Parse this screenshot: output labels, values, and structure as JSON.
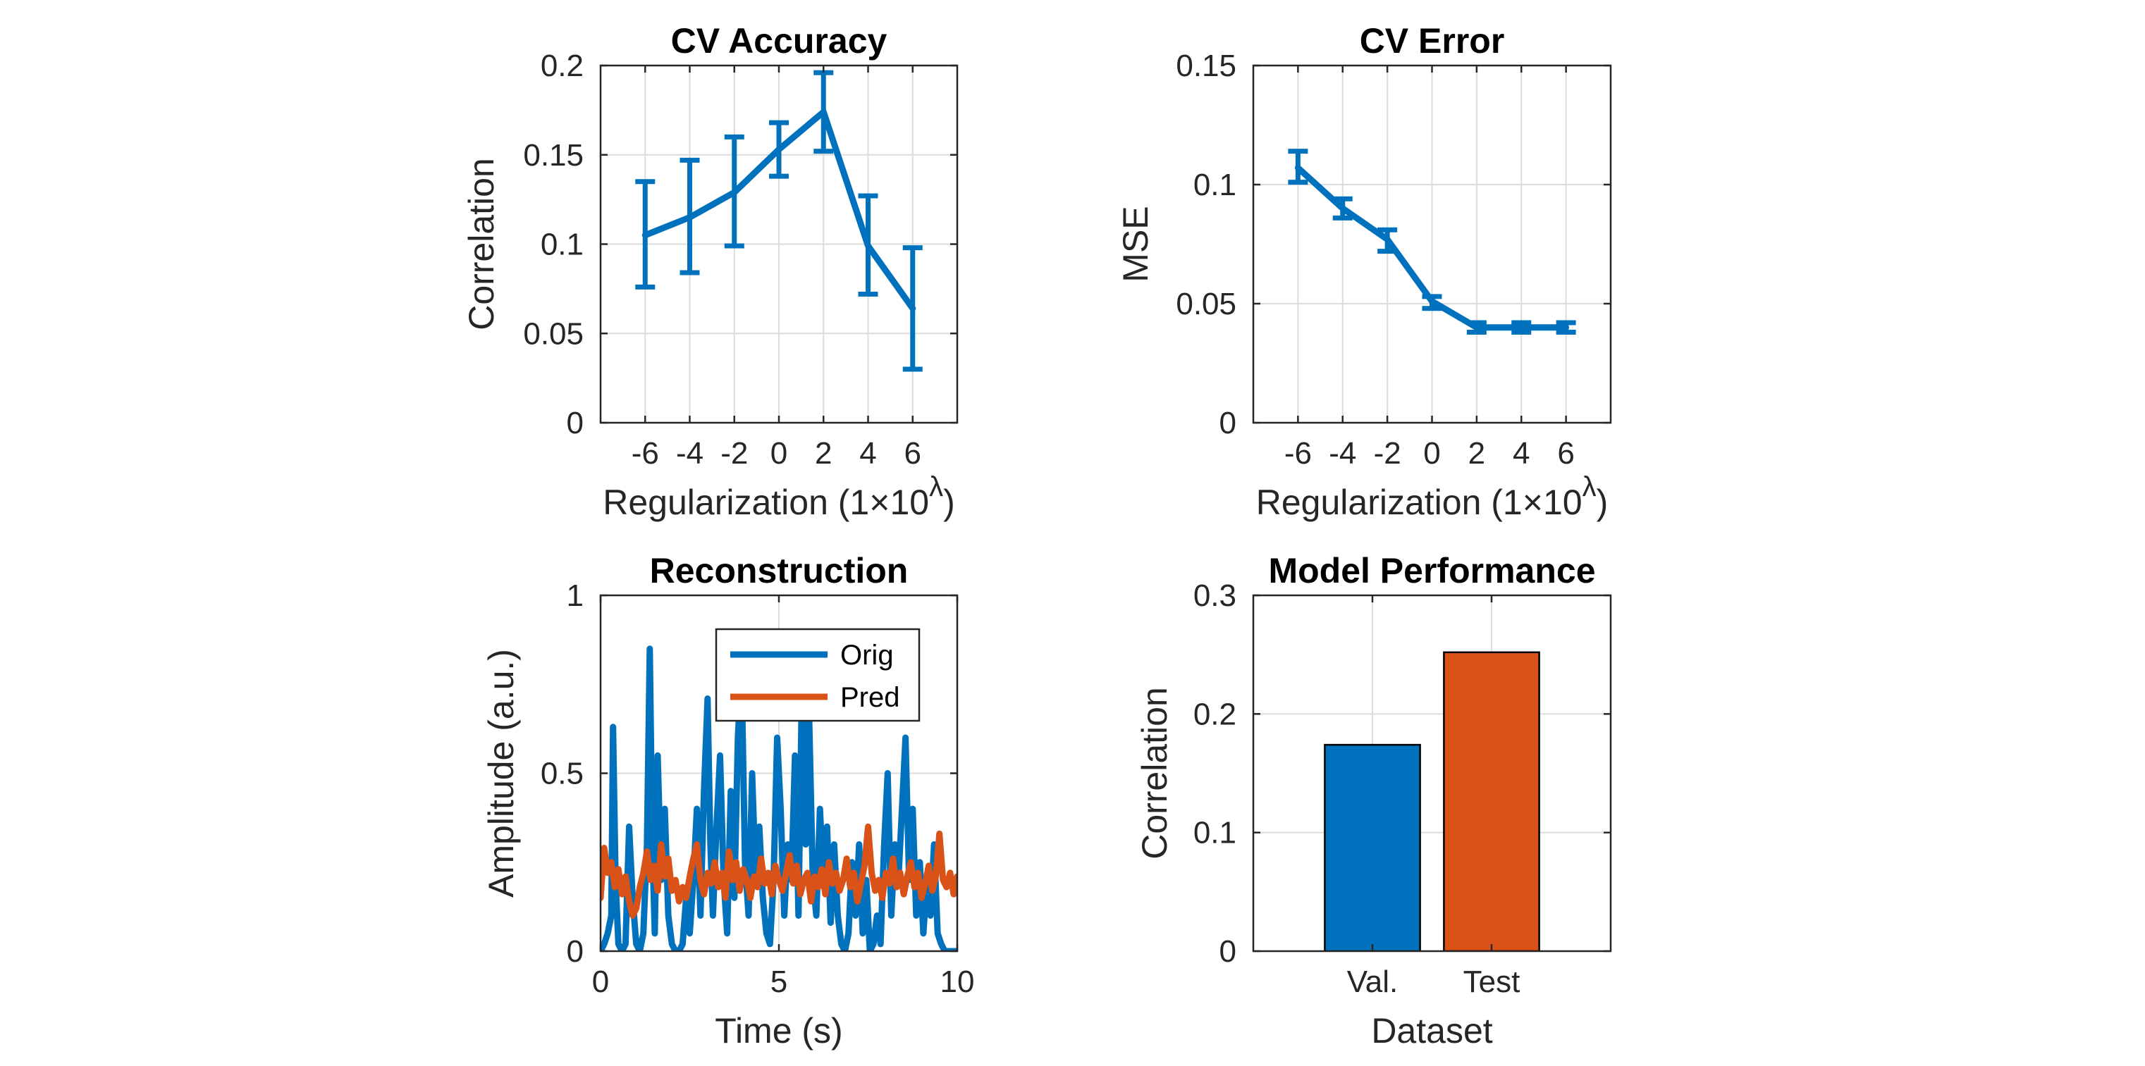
{
  "chart_data": [
    {
      "id": "cv-accuracy",
      "type": "line",
      "title": "CV Accuracy",
      "xlabel": "Regularization (1×10^λ)",
      "xlabel_main": "Regularization (1×10",
      "xlabel_sup": "λ",
      "xlabel_close": ")",
      "ylabel": "Correlation",
      "x": [
        -6,
        -4,
        -2,
        0,
        2,
        4,
        6
      ],
      "xlim": [
        -8,
        8
      ],
      "xticks": [
        -6,
        -4,
        -2,
        0,
        2,
        4,
        6
      ],
      "ylim": [
        0,
        0.2
      ],
      "yticks": [
        0,
        0.05,
        0.1,
        0.15,
        0.2
      ],
      "ytick_labels": [
        "0",
        "0.05",
        "0.1",
        "0.15",
        "0.2"
      ],
      "grid": true,
      "series": [
        {
          "name": "CV Accuracy",
          "color": "#0072BD",
          "values": [
            0.105,
            0.115,
            0.129,
            0.153,
            0.174,
            0.099,
            0.064
          ],
          "error_low": [
            0.076,
            0.084,
            0.099,
            0.138,
            0.152,
            0.072,
            0.03
          ],
          "error_high": [
            0.135,
            0.147,
            0.16,
            0.168,
            0.196,
            0.127,
            0.098
          ]
        }
      ]
    },
    {
      "id": "cv-error",
      "type": "line",
      "title": "CV Error",
      "xlabel": "Regularization (1×10^λ)",
      "xlabel_main": "Regularization (1×10",
      "xlabel_sup": "λ",
      "xlabel_close": ")",
      "ylabel": "MSE",
      "x": [
        -6,
        -4,
        -2,
        0,
        2,
        4,
        6
      ],
      "xlim": [
        -8,
        8
      ],
      "xticks": [
        -6,
        -4,
        -2,
        0,
        2,
        4,
        6
      ],
      "ylim": [
        0,
        0.15
      ],
      "yticks": [
        0,
        0.05,
        0.1,
        0.15
      ],
      "ytick_labels": [
        "0",
        "0.05",
        "0.1",
        "0.15"
      ],
      "grid": true,
      "series": [
        {
          "name": "CV Error",
          "color": "#0072BD",
          "values": [
            0.107,
            0.09,
            0.077,
            0.051,
            0.04,
            0.04,
            0.04
          ],
          "error_low": [
            0.101,
            0.086,
            0.072,
            0.048,
            0.038,
            0.038,
            0.038
          ],
          "error_high": [
            0.114,
            0.094,
            0.081,
            0.053,
            0.042,
            0.042,
            0.042
          ]
        }
      ]
    },
    {
      "id": "reconstruction",
      "type": "line",
      "title": "Reconstruction",
      "xlabel": "Time (s)",
      "ylabel": "Amplitude (a.u.)",
      "xlim": [
        0,
        10
      ],
      "xticks": [
        0,
        5,
        10
      ],
      "xtick_labels": [
        "0",
        "5",
        "10"
      ],
      "ylim": [
        0,
        1
      ],
      "yticks": [
        0,
        0.5,
        1
      ],
      "ytick_labels": [
        "0",
        "0.5",
        "1"
      ],
      "grid": true,
      "legend": {
        "location": "top-right",
        "entries": [
          "Orig",
          "Pred"
        ]
      },
      "series": [
        {
          "name": "Orig",
          "color": "#0072BD",
          "x": [
            0,
            0.1,
            0.2,
            0.3,
            0.35,
            0.42,
            0.5,
            0.6,
            0.7,
            0.8,
            0.9,
            1.0,
            1.1,
            1.2,
            1.3,
            1.38,
            1.45,
            1.52,
            1.6,
            1.7,
            1.8,
            1.9,
            2.0,
            2.1,
            2.2,
            2.3,
            2.4,
            2.5,
            2.6,
            2.7,
            2.8,
            2.9,
            3.0,
            3.08,
            3.15,
            3.25,
            3.35,
            3.45,
            3.55,
            3.65,
            3.75,
            3.85,
            3.95,
            4.05,
            4.15,
            4.25,
            4.35,
            4.45,
            4.55,
            4.65,
            4.75,
            4.85,
            4.95,
            5.05,
            5.15,
            5.25,
            5.35,
            5.45,
            5.55,
            5.65,
            5.75,
            5.85,
            5.95,
            6.05,
            6.15,
            6.25,
            6.35,
            6.45,
            6.55,
            6.65,
            6.75,
            6.85,
            6.95,
            7.05,
            7.15,
            7.25,
            7.35,
            7.45,
            7.55,
            7.65,
            7.75,
            7.85,
            7.95,
            8.05,
            8.15,
            8.25,
            8.35,
            8.45,
            8.55,
            8.65,
            8.75,
            8.85,
            8.95,
            9.05,
            9.15,
            9.25,
            9.35,
            9.45,
            9.55,
            9.65,
            9.75,
            9.85,
            9.95,
            10.0
          ],
          "values": [
            0.0,
            0.02,
            0.05,
            0.1,
            0.63,
            0.2,
            0.02,
            0.0,
            0.02,
            0.35,
            0.15,
            0.02,
            0.0,
            0.05,
            0.3,
            0.85,
            0.3,
            0.05,
            0.55,
            0.2,
            0.4,
            0.1,
            0.02,
            0.0,
            0.0,
            0.02,
            0.15,
            0.05,
            0.2,
            0.4,
            0.1,
            0.45,
            0.71,
            0.3,
            0.1,
            0.35,
            0.55,
            0.2,
            0.05,
            0.45,
            0.15,
            0.6,
            0.8,
            0.25,
            0.1,
            0.5,
            0.2,
            0.35,
            0.15,
            0.05,
            0.02,
            0.2,
            0.6,
            0.4,
            0.1,
            0.3,
            0.2,
            0.55,
            0.1,
            0.78,
            0.3,
            0.65,
            0.2,
            0.1,
            0.4,
            0.2,
            0.35,
            0.08,
            0.3,
            0.1,
            0.02,
            0.0,
            0.05,
            0.25,
            0.1,
            0.3,
            0.05,
            0.2,
            0.0,
            0.02,
            0.1,
            0.02,
            0.3,
            0.5,
            0.1,
            0.3,
            0.2,
            0.4,
            0.6,
            0.2,
            0.4,
            0.1,
            0.25,
            0.05,
            0.2,
            0.1,
            0.3,
            0.05,
            0.02,
            0.0,
            0.0,
            0.0,
            0.0,
            0.0
          ]
        },
        {
          "name": "Pred",
          "color": "#D95319",
          "x": [
            0,
            0.1,
            0.2,
            0.3,
            0.4,
            0.5,
            0.6,
            0.7,
            0.8,
            0.9,
            1.0,
            1.1,
            1.2,
            1.3,
            1.4,
            1.5,
            1.6,
            1.7,
            1.8,
            1.9,
            2.0,
            2.1,
            2.2,
            2.3,
            2.4,
            2.5,
            2.6,
            2.7,
            2.8,
            2.9,
            3.0,
            3.1,
            3.2,
            3.3,
            3.4,
            3.5,
            3.6,
            3.7,
            3.8,
            3.9,
            4.0,
            4.1,
            4.2,
            4.3,
            4.4,
            4.5,
            4.6,
            4.7,
            4.8,
            4.9,
            5.0,
            5.1,
            5.2,
            5.3,
            5.4,
            5.5,
            5.6,
            5.7,
            5.8,
            5.9,
            6.0,
            6.1,
            6.2,
            6.3,
            6.4,
            6.5,
            6.6,
            6.7,
            6.8,
            6.9,
            7.0,
            7.1,
            7.2,
            7.3,
            7.4,
            7.5,
            7.6,
            7.7,
            7.8,
            7.9,
            8.0,
            8.1,
            8.2,
            8.3,
            8.4,
            8.5,
            8.6,
            8.7,
            8.8,
            8.9,
            9.0,
            9.1,
            9.2,
            9.3,
            9.4,
            9.5,
            9.6,
            9.7,
            9.8,
            9.9,
            10.0
          ],
          "values": [
            0.15,
            0.29,
            0.22,
            0.25,
            0.18,
            0.23,
            0.16,
            0.21,
            0.14,
            0.1,
            0.12,
            0.18,
            0.22,
            0.28,
            0.2,
            0.24,
            0.17,
            0.3,
            0.21,
            0.26,
            0.17,
            0.2,
            0.14,
            0.18,
            0.15,
            0.21,
            0.26,
            0.3,
            0.2,
            0.16,
            0.22,
            0.19,
            0.25,
            0.18,
            0.22,
            0.15,
            0.28,
            0.2,
            0.25,
            0.17,
            0.23,
            0.2,
            0.15,
            0.21,
            0.18,
            0.26,
            0.19,
            0.22,
            0.16,
            0.24,
            0.2,
            0.17,
            0.22,
            0.27,
            0.19,
            0.24,
            0.16,
            0.2,
            0.22,
            0.14,
            0.21,
            0.18,
            0.23,
            0.16,
            0.25,
            0.19,
            0.22,
            0.17,
            0.2,
            0.26,
            0.18,
            0.22,
            0.14,
            0.19,
            0.24,
            0.35,
            0.22,
            0.17,
            0.2,
            0.15,
            0.22,
            0.19,
            0.26,
            0.18,
            0.22,
            0.16,
            0.21,
            0.25,
            0.18,
            0.22,
            0.15,
            0.19,
            0.24,
            0.17,
            0.21,
            0.33,
            0.2,
            0.18,
            0.22,
            0.16,
            0.21
          ]
        }
      ]
    },
    {
      "id": "model-performance",
      "type": "bar",
      "title": "Model Performance",
      "xlabel": "Dataset",
      "ylabel": "Correlation",
      "categories": [
        "Val.",
        "Test"
      ],
      "values": [
        0.174,
        0.252
      ],
      "colors": [
        "#0072BD",
        "#D95319"
      ],
      "xlim": [
        0,
        3
      ],
      "ylim": [
        0,
        0.3
      ],
      "yticks": [
        0,
        0.1,
        0.2,
        0.3
      ],
      "ytick_labels": [
        "0",
        "0.1",
        "0.2",
        "0.3"
      ],
      "grid": true
    }
  ]
}
